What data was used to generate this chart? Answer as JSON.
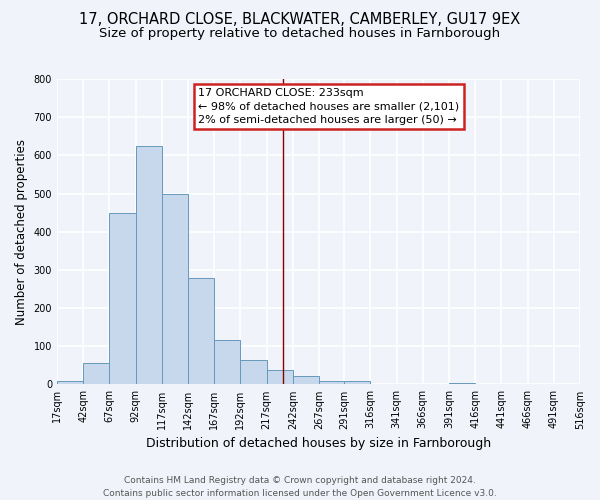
{
  "title_line1": "17, ORCHARD CLOSE, BLACKWATER, CAMBERLEY, GU17 9EX",
  "title_line2": "Size of property relative to detached houses in Farnborough",
  "xlabel": "Distribution of detached houses by size in Farnborough",
  "ylabel": "Number of detached properties",
  "bar_color": "#c8d8ec",
  "bar_edge_color": "#6699bb",
  "background_color": "#f0f4fa",
  "grid_color": "#ffffff",
  "bins": [
    17,
    42,
    67,
    92,
    117,
    142,
    167,
    192,
    217,
    242,
    267,
    291,
    316,
    341,
    366,
    391,
    416,
    441,
    466,
    491,
    516
  ],
  "counts": [
    10,
    57,
    450,
    625,
    500,
    278,
    117,
    65,
    38,
    22,
    10,
    8,
    0,
    0,
    0,
    5,
    0,
    0,
    0,
    0
  ],
  "vline_x": 233,
  "vline_color": "#880000",
  "annotation_title": "17 ORCHARD CLOSE: 233sqm",
  "annotation_line1": "← 98% of detached houses are smaller (2,101)",
  "annotation_line2": "2% of semi-detached houses are larger (50) →",
  "annotation_box_color": "#ffffff",
  "annotation_border_color": "#cc2222",
  "ylim": [
    0,
    800
  ],
  "yticks": [
    0,
    100,
    200,
    300,
    400,
    500,
    600,
    700,
    800
  ],
  "xtick_labels": [
    "17sqm",
    "42sqm",
    "67sqm",
    "92sqm",
    "117sqm",
    "142sqm",
    "167sqm",
    "192sqm",
    "217sqm",
    "242sqm",
    "267sqm",
    "291sqm",
    "316sqm",
    "341sqm",
    "366sqm",
    "391sqm",
    "416sqm",
    "441sqm",
    "466sqm",
    "491sqm",
    "516sqm"
  ],
  "footer_line1": "Contains HM Land Registry data © Crown copyright and database right 2024.",
  "footer_line2": "Contains public sector information licensed under the Open Government Licence v3.0.",
  "title_fontsize": 10.5,
  "subtitle_fontsize": 9.5,
  "ylabel_fontsize": 8.5,
  "xlabel_fontsize": 9,
  "tick_fontsize": 7,
  "annotation_fontsize": 8,
  "footer_fontsize": 6.5
}
